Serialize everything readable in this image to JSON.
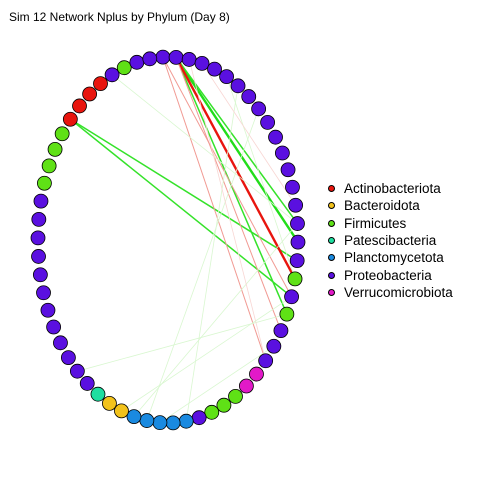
{
  "title": "Sim 12 Network Nplus by Phylum (Day 8)",
  "legend": [
    {
      "label": "Actinobacteriota",
      "color": "#e8150e"
    },
    {
      "label": "Bacteroidota",
      "color": "#f2c21b"
    },
    {
      "label": "Firmicutes",
      "color": "#5fe116"
    },
    {
      "label": "Patescibacteria",
      "color": "#1edea0"
    },
    {
      "label": "Planctomycetota",
      "color": "#1a8ae0"
    },
    {
      "label": "Proteobacteria",
      "color": "#5a10e0"
    },
    {
      "label": "Verrucomicrobiota",
      "color": "#e219c8"
    }
  ],
  "node_groups": [
    {
      "phylum": "Proteobacteria",
      "count": 18
    },
    {
      "phylum": "Firmicutes",
      "count": 1
    },
    {
      "phylum": "Proteobacteria",
      "count": 1
    },
    {
      "phylum": "Firmicutes",
      "count": 1
    },
    {
      "phylum": "Proteobacteria",
      "count": 3
    },
    {
      "phylum": "Verrucomicrobiota",
      "count": 2
    },
    {
      "phylum": "Firmicutes",
      "count": 3
    },
    {
      "phylum": "Proteobacteria",
      "count": 1
    },
    {
      "phylum": "Planctomycetota",
      "count": 5
    },
    {
      "phylum": "Bacteroidota",
      "count": 2
    },
    {
      "phylum": "Patescibacteria",
      "count": 1
    },
    {
      "phylum": "Proteobacteria",
      "count": 12
    },
    {
      "phylum": "Firmicutes",
      "count": 4
    },
    {
      "phylum": "Actinobacteriota",
      "count": 4
    },
    {
      "phylum": "Proteobacteria",
      "count": 1
    },
    {
      "phylum": "Firmicutes",
      "count": 1
    },
    {
      "phylum": "Proteobacteria",
      "count": 2
    }
  ],
  "edges": [
    {
      "a": 1,
      "b": 16,
      "sign": "pos",
      "strength": 3
    },
    {
      "a": 1,
      "b": 20,
      "sign": "pos",
      "strength": 2
    },
    {
      "a": 1,
      "b": 15,
      "sign": "pos",
      "strength": 2
    },
    {
      "a": 54,
      "b": 17,
      "sign": "pos",
      "strength": 2
    },
    {
      "a": 54,
      "b": 19,
      "sign": "pos",
      "strength": 2
    },
    {
      "a": 1,
      "b": 18,
      "sign": "neg",
      "strength": 3
    },
    {
      "a": 1,
      "b": 21,
      "sign": "neg",
      "strength": 1
    },
    {
      "a": 0,
      "b": 19,
      "sign": "neg",
      "strength": 1
    },
    {
      "a": 0,
      "b": 23,
      "sign": "neg",
      "strength": 1
    },
    {
      "a": 69,
      "b": 43,
      "sign": "pos",
      "strength": 0
    },
    {
      "a": 69,
      "b": 17,
      "sign": "pos",
      "strength": 0
    },
    {
      "a": 62,
      "b": 27,
      "sign": "pos",
      "strength": 0
    },
    {
      "a": 58,
      "b": 15,
      "sign": "pos",
      "strength": 0
    },
    {
      "a": 20,
      "b": 39,
      "sign": "pos",
      "strength": 0
    },
    {
      "a": 22,
      "b": 32,
      "sign": "pos",
      "strength": 0
    },
    {
      "a": 6,
      "b": 30,
      "sign": "pos",
      "strength": 0
    },
    {
      "a": 8,
      "b": 33,
      "sign": "pos",
      "strength": 0
    },
    {
      "a": 15,
      "b": 34,
      "sign": "pos",
      "strength": 0
    },
    {
      "a": 5,
      "b": 18,
      "sign": "pos",
      "strength": 0
    },
    {
      "a": 2,
      "b": 23,
      "sign": "neg",
      "strength": 0
    },
    {
      "a": 3,
      "b": 14,
      "sign": "neg",
      "strength": 0
    },
    {
      "a": 19,
      "b": 35,
      "sign": "pos",
      "strength": 0
    }
  ]
}
